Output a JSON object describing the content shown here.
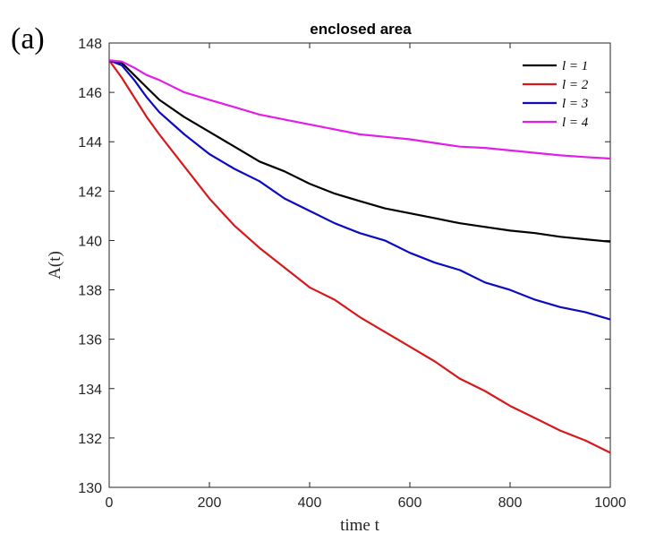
{
  "panel_label": "(a)",
  "chart_data": {
    "type": "line",
    "title": "enclosed area",
    "xlabel": "time t",
    "ylabel": "A(t)",
    "xlim": [
      0,
      1000
    ],
    "ylim": [
      130,
      148
    ],
    "xticks": [
      0,
      200,
      400,
      600,
      800,
      1000
    ],
    "yticks": [
      130,
      132,
      134,
      136,
      138,
      140,
      142,
      144,
      146,
      148
    ],
    "grid": false,
    "legend_position": "top-right",
    "series": [
      {
        "name": "l = 1",
        "color": "#000000",
        "x": [
          0,
          25,
          50,
          75,
          100,
          150,
          200,
          250,
          300,
          350,
          400,
          450,
          500,
          550,
          600,
          650,
          700,
          750,
          800,
          850,
          900,
          950,
          1000
        ],
        "y": [
          147.3,
          147.2,
          146.7,
          146.2,
          145.7,
          145.0,
          144.4,
          143.8,
          143.2,
          142.8,
          142.3,
          141.9,
          141.6,
          141.3,
          141.1,
          140.9,
          140.7,
          140.55,
          140.4,
          140.3,
          140.15,
          140.05,
          139.95
        ]
      },
      {
        "name": "l = 2",
        "color": "#d7191c",
        "x": [
          0,
          25,
          50,
          75,
          100,
          150,
          200,
          250,
          300,
          350,
          400,
          450,
          500,
          550,
          600,
          650,
          700,
          750,
          800,
          850,
          900,
          950,
          1000
        ],
        "y": [
          147.3,
          146.6,
          145.8,
          145.0,
          144.3,
          143.0,
          141.7,
          140.6,
          139.7,
          138.9,
          138.1,
          137.6,
          136.9,
          136.3,
          135.7,
          135.1,
          134.4,
          133.9,
          133.3,
          132.8,
          132.3,
          131.9,
          131.4
        ]
      },
      {
        "name": "l = 3",
        "color": "#0b0bbf",
        "x": [
          0,
          25,
          50,
          75,
          100,
          150,
          200,
          250,
          300,
          350,
          400,
          450,
          500,
          550,
          600,
          650,
          700,
          750,
          800,
          850,
          900,
          950,
          1000
        ],
        "y": [
          147.3,
          147.1,
          146.5,
          145.8,
          145.2,
          144.3,
          143.5,
          142.9,
          142.4,
          141.7,
          141.2,
          140.7,
          140.3,
          140.0,
          139.5,
          139.1,
          138.8,
          138.3,
          138.0,
          137.6,
          137.3,
          137.1,
          136.8
        ]
      },
      {
        "name": "l = 4",
        "color": "#e020e8",
        "x": [
          0,
          25,
          50,
          75,
          100,
          150,
          200,
          250,
          300,
          350,
          400,
          450,
          500,
          550,
          600,
          650,
          700,
          750,
          800,
          850,
          900,
          950,
          1000
        ],
        "y": [
          147.3,
          147.25,
          147.0,
          146.7,
          146.5,
          146.0,
          145.7,
          145.4,
          145.1,
          144.9,
          144.7,
          144.5,
          144.3,
          144.2,
          144.1,
          143.95,
          143.8,
          143.75,
          143.65,
          143.55,
          143.45,
          143.38,
          143.32
        ]
      }
    ]
  }
}
